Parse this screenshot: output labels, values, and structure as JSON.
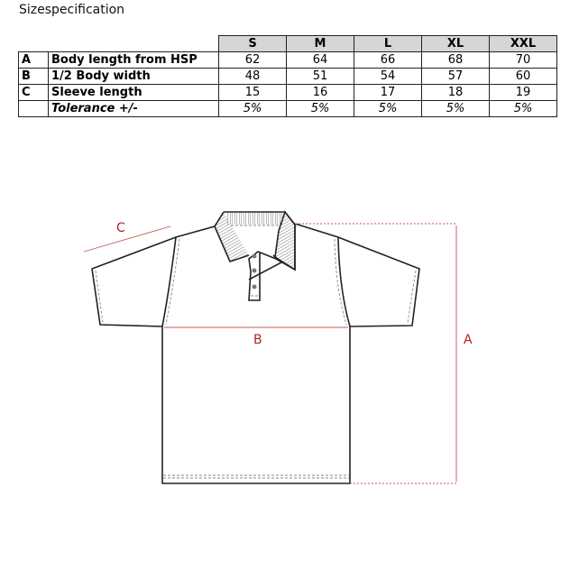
{
  "title": "Sizespecification",
  "table": {
    "sizes": [
      "S",
      "M",
      "L",
      "XL",
      "XXL"
    ],
    "rows": [
      {
        "code": "A",
        "label": "Body length from HSP",
        "values": [
          "62",
          "64",
          "66",
          "68",
          "70"
        ]
      },
      {
        "code": "B",
        "label": "1/2 Body width",
        "values": [
          "48",
          "51",
          "54",
          "57",
          "60"
        ]
      },
      {
        "code": "C",
        "label": "Sleeve length",
        "values": [
          "15",
          "16",
          "17",
          "18",
          "19"
        ]
      },
      {
        "code": "",
        "label": "Tolerance +/-",
        "values": [
          "5%",
          "5%",
          "5%",
          "5%",
          "5%"
        ]
      }
    ]
  },
  "diagram": {
    "label_a": "A",
    "label_b": "B",
    "label_c": "C",
    "measure_color": "#b32020"
  }
}
